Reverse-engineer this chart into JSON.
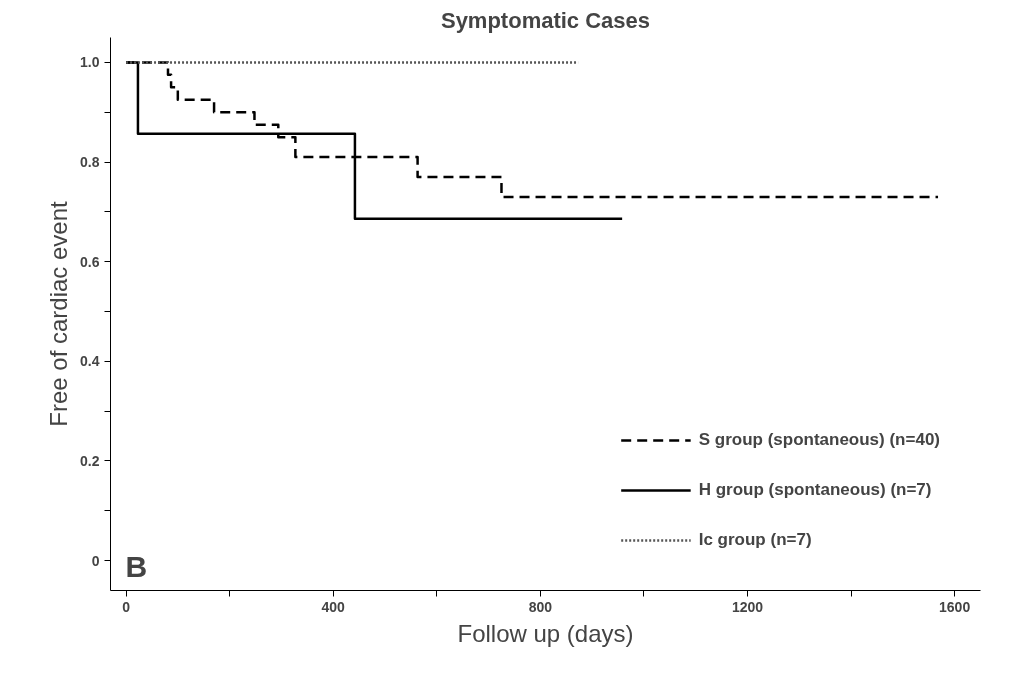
{
  "chart_data": {
    "type": "step",
    "title": "Symptomatic Cases",
    "xlabel": "Follow up (days)",
    "ylabel": "Free of cardiac event",
    "series": [
      {
        "name": "S group (spontaneous) (n=40)",
        "color": "#000000",
        "line_style": "dashed",
        "x": [
          0,
          81,
          87,
          100,
          170,
          248,
          294,
          327,
          563,
          725,
          1568
        ],
        "values": [
          1.0,
          0.975,
          0.95,
          0.925,
          0.9,
          0.875,
          0.85,
          0.81,
          0.77,
          0.73,
          0.73
        ]
      },
      {
        "name": "H group (spontaneous) (n=7)",
        "color": "#000000",
        "line_style": "solid",
        "x": [
          0,
          23,
          442,
          958
        ],
        "values": [
          1.0,
          0.857,
          0.686,
          0.686
        ]
      },
      {
        "name": "Ic group (n=7)",
        "color": "#555555",
        "line_style": "dotted",
        "x": [
          0,
          873
        ],
        "values": [
          1.0,
          1.0
        ]
      }
    ],
    "xlim": [
      -30,
      1650
    ],
    "ylim": [
      -0.06,
      1.05
    ],
    "xticks": [
      0,
      {
        "value": 200,
        "label": null
      },
      400,
      {
        "value": 600,
        "label": null
      },
      800,
      {
        "value": 1000,
        "label": null
      },
      1200,
      {
        "value": 1400,
        "label": null
      },
      1600
    ],
    "yticks": [
      0,
      {
        "value": 0.1,
        "label": null
      },
      0.2,
      {
        "value": 0.3,
        "label": null
      },
      0.4,
      {
        "value": 0.5,
        "label": null
      },
      0.6,
      {
        "value": 0.7,
        "label": null
      },
      0.8,
      {
        "value": 0.9,
        "label": null
      },
      {
        "value": 1.0,
        "label": "1.0"
      }
    ],
    "legend": "bottom right",
    "grid": false,
    "annotations": [
      "B"
    ]
  }
}
